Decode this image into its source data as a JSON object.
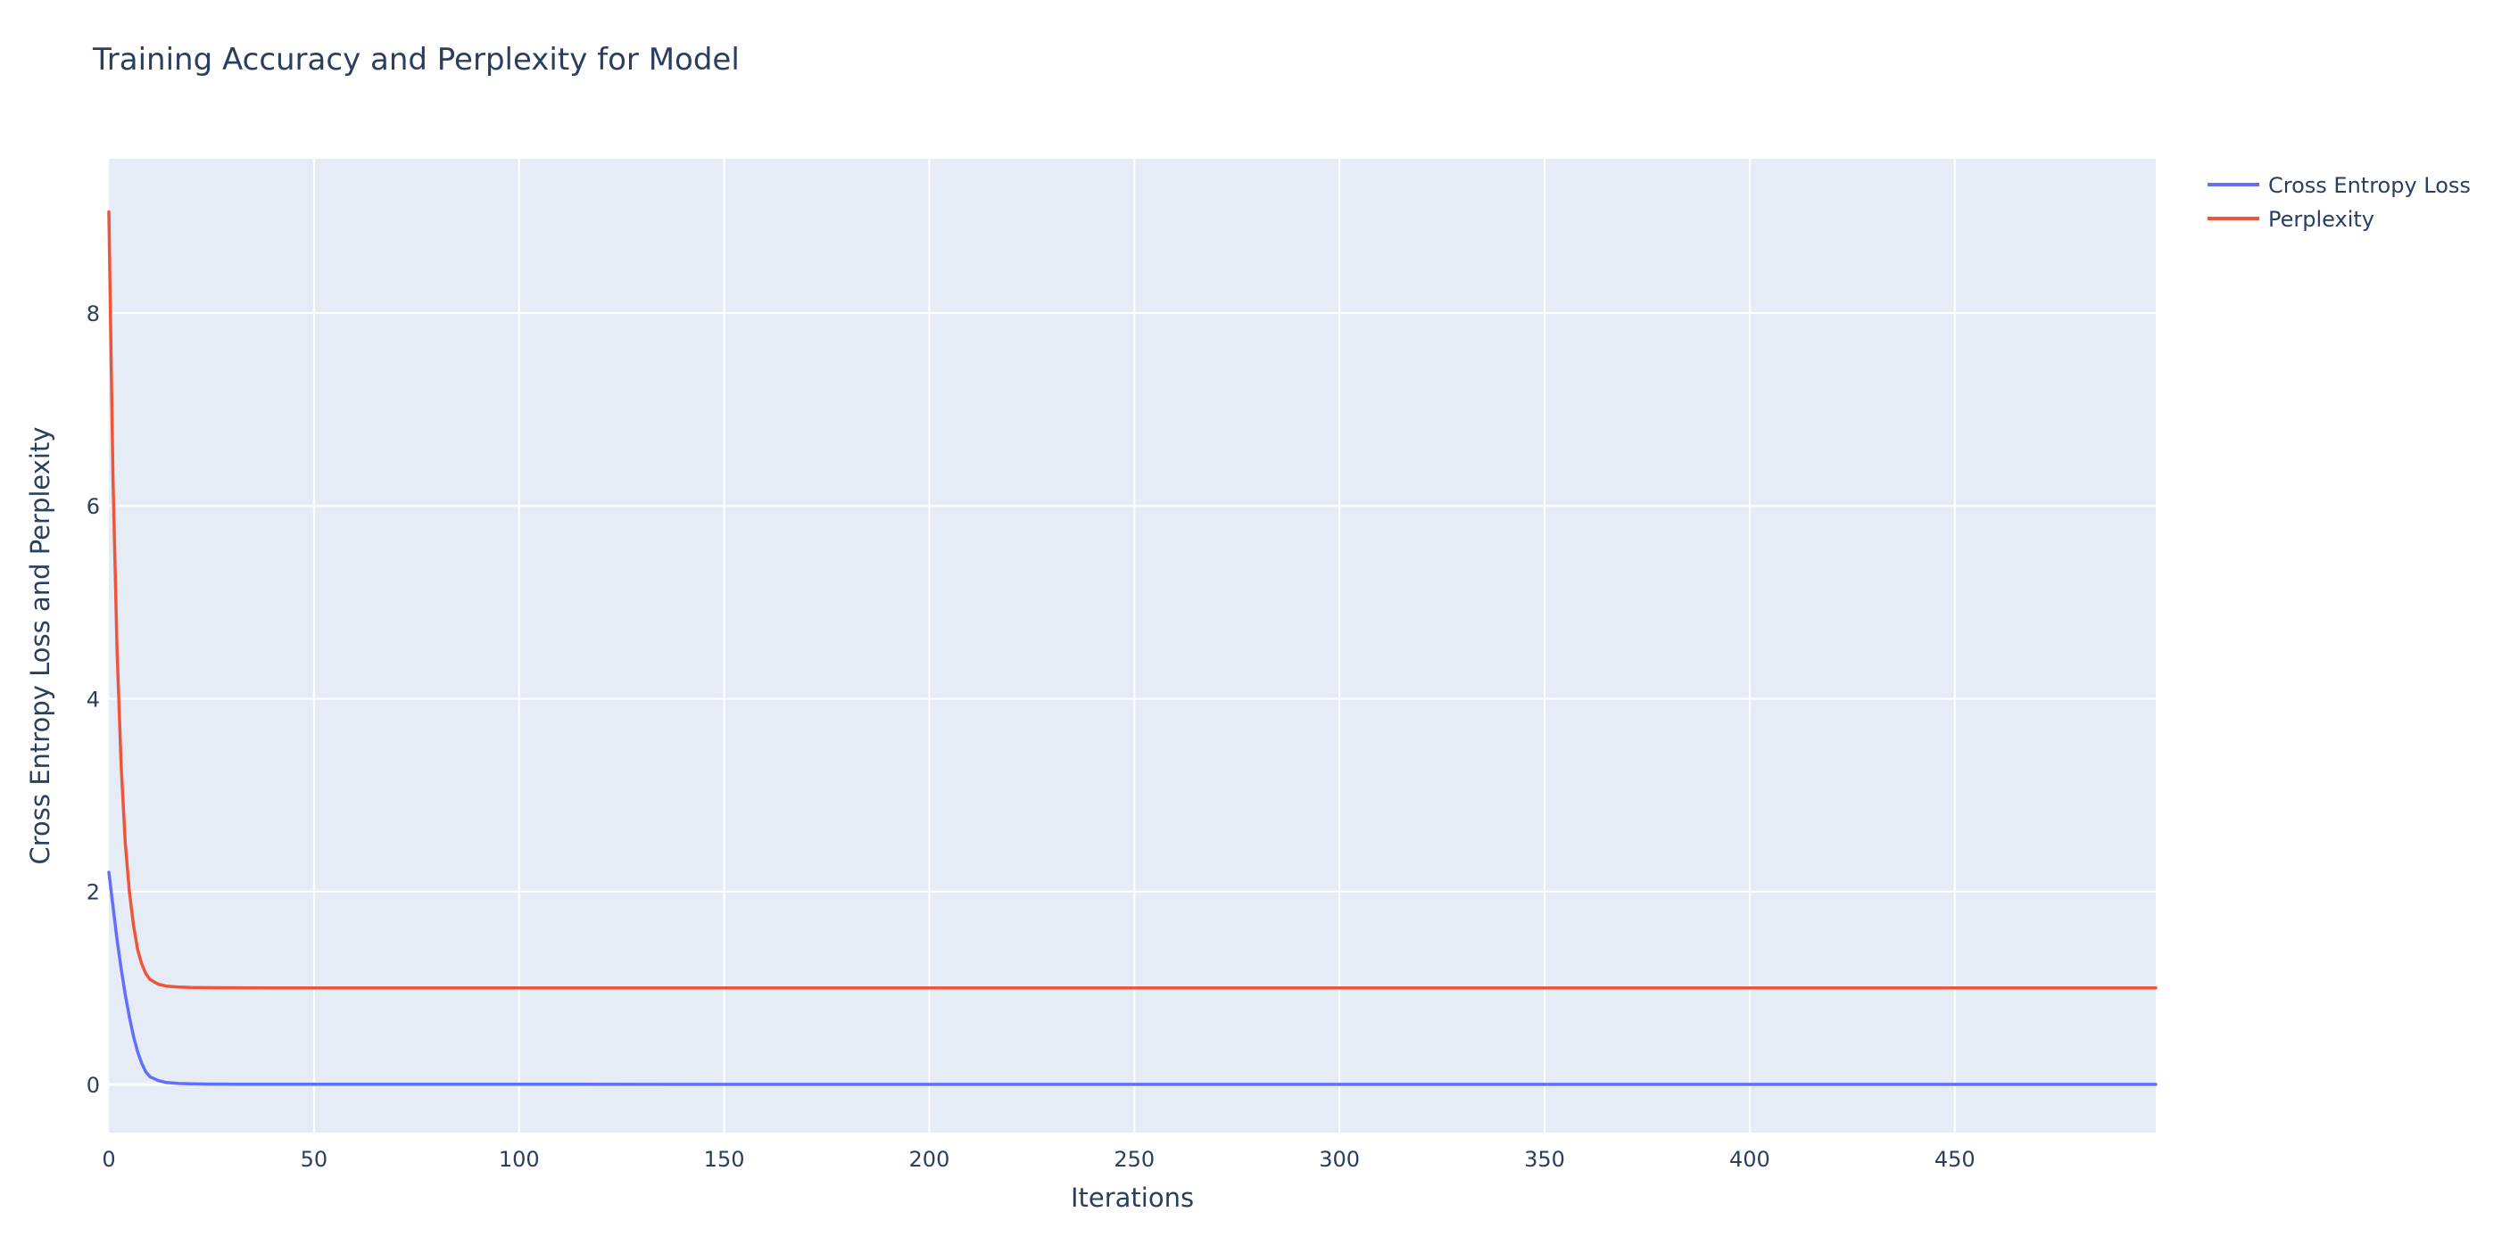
{
  "chart_data": {
    "type": "line",
    "title": "Training Accuracy and Perplexity for Model",
    "xlabel": "Iterations",
    "ylabel": "Cross Entropy Loss and Perplexity",
    "xlim": [
      0,
      499
    ],
    "ylim": [
      -0.5,
      9.6
    ],
    "x_ticks": [
      0,
      50,
      100,
      150,
      200,
      250,
      300,
      350,
      400,
      450
    ],
    "y_ticks": [
      0,
      2,
      4,
      6,
      8
    ],
    "grid": true,
    "legend_position": "top-right",
    "x": [
      0,
      1,
      2,
      3,
      4,
      5,
      6,
      7,
      8,
      9,
      10,
      12,
      14,
      17,
      20,
      25,
      30,
      40,
      50,
      100,
      200,
      300,
      400,
      499
    ],
    "series": [
      {
        "name": "Cross Entropy Loss",
        "color": "#636efa",
        "values": [
          2.2,
          1.85,
          1.5,
          1.2,
          0.93,
          0.7,
          0.5,
          0.34,
          0.22,
          0.13,
          0.08,
          0.04,
          0.02,
          0.01,
          0.006,
          0.003,
          0.002,
          0.001,
          0.001,
          0.001,
          0.0,
          0.0,
          0.0,
          0.0
        ]
      },
      {
        "name": "Perplexity",
        "color": "#ef553b",
        "values": [
          9.05,
          6.3,
          4.5,
          3.3,
          2.5,
          2.0,
          1.65,
          1.4,
          1.25,
          1.15,
          1.09,
          1.04,
          1.02,
          1.01,
          1.006,
          1.003,
          1.002,
          1.001,
          1.001,
          1.0,
          1.0,
          1.0,
          1.0,
          1.0
        ]
      }
    ]
  }
}
